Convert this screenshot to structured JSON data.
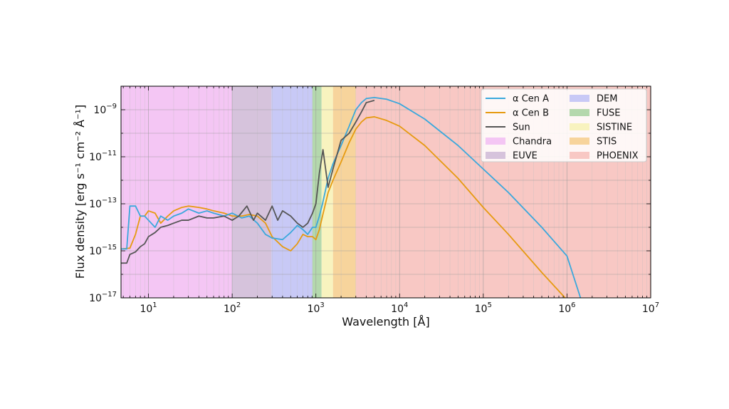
{
  "chart_data": {
    "type": "line",
    "x_scale": "log",
    "y_scale": "log",
    "xlabel": "Wavelength [Å]",
    "ylabel": "Flux density [erg s⁻¹ cm⁻² Å⁻¹]",
    "xlim": [
      4.7,
      10000000
    ],
    "ylim": [
      1e-17,
      1e-08
    ],
    "grid": true,
    "legend_position": "top-right",
    "x_ticks": [
      {
        "value": 10,
        "base": "10",
        "exp": "1"
      },
      {
        "value": 100,
        "base": "10",
        "exp": "2"
      },
      {
        "value": 1000,
        "base": "10",
        "exp": "3"
      },
      {
        "value": 10000,
        "base": "10",
        "exp": "4"
      },
      {
        "value": 100000,
        "base": "10",
        "exp": "5"
      },
      {
        "value": 1000000,
        "base": "10",
        "exp": "6"
      },
      {
        "value": 10000000,
        "base": "10",
        "exp": "7"
      }
    ],
    "y_ticks": [
      {
        "value": 1e-17,
        "base": "10",
        "exp": "−17"
      },
      {
        "value": 1e-15,
        "base": "10",
        "exp": "−15"
      },
      {
        "value": 1e-13,
        "base": "10",
        "exp": "−13"
      },
      {
        "value": 1e-11,
        "base": "10",
        "exp": "−11"
      },
      {
        "value": 1e-09,
        "base": "10",
        "exp": "−9"
      }
    ],
    "bands": [
      {
        "name": "Chandra",
        "range": [
          4.7,
          100
        ],
        "color": "#f4c6f4"
      },
      {
        "name": "EUVE",
        "range": [
          100,
          295
        ],
        "color": "#d6c3dc"
      },
      {
        "name": "DEM",
        "range": [
          295,
          912
        ],
        "color": "#c8c9f6"
      },
      {
        "name": "FUSE",
        "range": [
          912,
          1170
        ],
        "color": "#b4d8ad"
      },
      {
        "name": "SISTINE",
        "range": [
          1170,
          1600
        ],
        "color": "#f8f3bf"
      },
      {
        "name": "STIS",
        "range": [
          1600,
          3000
        ],
        "color": "#f7d49c"
      },
      {
        "name": "PHOENIX",
        "range": [
          3000,
          10000000
        ],
        "color": "#f8c8c4"
      }
    ],
    "series": [
      {
        "name": "α Cen A",
        "color": "#3aa8dc",
        "x": [
          4.7,
          5.5,
          6,
          7,
          8,
          9,
          10,
          12,
          14,
          17,
          20,
          25,
          30,
          40,
          50,
          60,
          80,
          100,
          130,
          160,
          200,
          250,
          300,
          400,
          500,
          600,
          700,
          800,
          912,
          1000,
          1100,
          1200,
          1400,
          1600,
          2000,
          2500,
          3000,
          3500,
          4000,
          5000,
          7000,
          10000,
          20000,
          50000,
          100000,
          200000,
          500000,
          1000000,
          1450000
        ],
        "y": [
          1.2e-15,
          1.2e-15,
          8e-14,
          8e-14,
          3e-14,
          3e-14,
          2e-14,
          1e-14,
          3e-14,
          2e-14,
          3e-14,
          4e-14,
          6e-14,
          4e-14,
          5e-14,
          4e-14,
          3e-14,
          4e-14,
          2.5e-14,
          3e-14,
          1.5e-14,
          5e-15,
          3.5e-15,
          3e-15,
          6e-15,
          1.2e-14,
          8e-15,
          5e-15,
          1e-14,
          1e-14,
          3e-14,
          1e-13,
          1.2e-12,
          5e-12,
          3e-11,
          2e-10,
          1e-09,
          2e-09,
          3e-09,
          3.3e-09,
          2.8e-09,
          1.8e-09,
          4e-10,
          3e-11,
          3e-12,
          3e-13,
          1e-14,
          6e-16,
          1e-17
        ]
      },
      {
        "name": "α Cen B",
        "color": "#e69a10",
        "x": [
          4.7,
          6,
          7,
          8,
          9,
          10,
          12,
          14,
          17,
          20,
          25,
          30,
          40,
          50,
          60,
          80,
          100,
          130,
          160,
          200,
          250,
          300,
          400,
          500,
          600,
          700,
          800,
          912,
          1000,
          1100,
          1200,
          1400,
          1600,
          2000,
          2500,
          3000,
          3500,
          4000,
          5000,
          7000,
          10000,
          20000,
          50000,
          100000,
          200000,
          500000,
          950000
        ],
        "y": [
          1.2e-15,
          1.3e-15,
          5e-15,
          3e-14,
          3e-14,
          5e-14,
          4e-14,
          1.5e-14,
          3e-14,
          5e-14,
          7e-14,
          8e-14,
          7e-14,
          6e-14,
          5e-14,
          4e-14,
          3e-14,
          3e-14,
          3.5e-14,
          3e-14,
          1.5e-14,
          4e-15,
          1.5e-15,
          1e-15,
          2e-15,
          5e-15,
          4e-15,
          4e-15,
          3e-15,
          8e-15,
          3e-14,
          3e-13,
          1e-12,
          6e-12,
          4e-11,
          1.5e-10,
          3e-10,
          4.5e-10,
          5e-10,
          3.5e-10,
          2e-10,
          3e-11,
          1.2e-12,
          7e-14,
          5e-15,
          1.2e-16,
          1e-17
        ]
      },
      {
        "name": "Sun",
        "color": "#555555",
        "x": [
          4.7,
          5.5,
          6,
          7,
          8,
          9,
          10,
          12,
          14,
          17,
          20,
          25,
          30,
          40,
          50,
          60,
          80,
          100,
          120,
          150,
          180,
          200,
          250,
          300,
          350,
          400,
          500,
          600,
          700,
          800,
          912,
          1000,
          1100,
          1216,
          1400,
          1600,
          2000,
          2500,
          3000,
          3500,
          4000,
          5000
        ],
        "y": [
          3e-16,
          3e-16,
          7e-16,
          9e-16,
          1.5e-15,
          2e-15,
          4e-15,
          6e-15,
          1e-14,
          1.2e-14,
          1.5e-14,
          2e-14,
          2e-14,
          3e-14,
          2.5e-14,
          2.5e-14,
          3e-14,
          2e-14,
          3e-14,
          8e-14,
          2e-14,
          4e-14,
          2e-14,
          8e-14,
          2e-14,
          5e-14,
          3e-14,
          1.5e-14,
          1e-14,
          1.5e-14,
          4e-14,
          1e-13,
          2e-12,
          2e-11,
          5e-13,
          3e-12,
          5e-11,
          1e-10,
          3e-10,
          8e-10,
          2e-09,
          2.5e-09
        ]
      }
    ]
  },
  "legend": [
    {
      "label": "α Cen A",
      "kind": "line",
      "color": "#3aa8dc"
    },
    {
      "label": "α Cen B",
      "kind": "line",
      "color": "#e69a10"
    },
    {
      "label": "Sun",
      "kind": "line",
      "color": "#555555"
    },
    {
      "label": "Chandra",
      "kind": "patch",
      "color": "#f4c6f4"
    },
    {
      "label": "EUVE",
      "kind": "patch",
      "color": "#d6c3dc"
    },
    {
      "label": "DEM",
      "kind": "patch",
      "color": "#c8c9f6"
    },
    {
      "label": "FUSE",
      "kind": "patch",
      "color": "#b4d8ad"
    },
    {
      "label": "SISTINE",
      "kind": "patch",
      "color": "#f8f3bf"
    },
    {
      "label": "STIS",
      "kind": "patch",
      "color": "#f7d49c"
    },
    {
      "label": "PHOENIX",
      "kind": "patch",
      "color": "#f8c8c4"
    }
  ]
}
